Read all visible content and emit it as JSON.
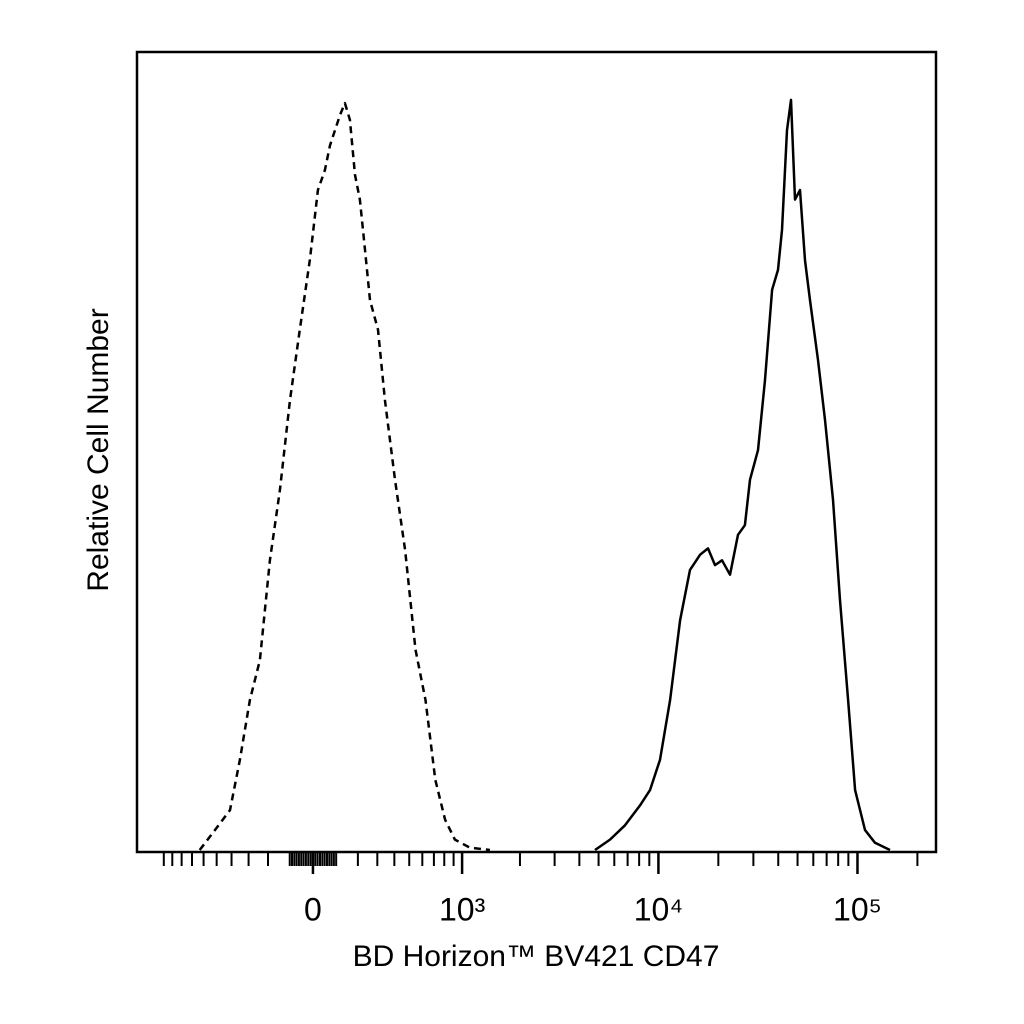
{
  "chart_data": {
    "type": "line",
    "xlabel": "BD Horizon™ BV421 CD47",
    "ylabel": "Relative Cell Number",
    "xscale": "biexponential",
    "xlim": [
      -1384,
      248000
    ],
    "ylim": [
      0,
      100
    ],
    "xticks": [
      0,
      {
        "value": 1000,
        "label": "10³"
      },
      {
        "value": 10000,
        "label": "10⁴"
      },
      {
        "value": 100000,
        "label": "10⁵"
      }
    ],
    "xminor_ticks": [
      -1000,
      -900,
      -800,
      -700,
      -600,
      -500,
      -400,
      -300,
      -200,
      -100,
      -90,
      -80,
      -70,
      -60,
      -50,
      -40,
      -30,
      -20,
      -10,
      10,
      20,
      30,
      40,
      50,
      60,
      70,
      80,
      90,
      100,
      200,
      300,
      400,
      500,
      600,
      700,
      800,
      900,
      2000,
      3000,
      4000,
      5000,
      6000,
      7000,
      8000,
      9000,
      20000,
      30000,
      40000,
      50000,
      60000,
      70000,
      80000,
      90000,
      200000
    ],
    "series": [
      {
        "color": "#000000",
        "linestyle": "dashed",
        "x": [
          -632,
          -512,
          -410,
          -349,
          -293,
          -240,
          -191,
          -144,
          -99,
          -56,
          -13,
          21,
          51,
          73,
          95,
          117,
          139,
          162,
          186,
          210,
          235,
          261,
          304,
          343,
          404,
          471,
          546,
          626,
          713,
          809,
          915,
          1098,
          1401
        ],
        "values": [
          0,
          2.5,
          5.0,
          11.3,
          18.8,
          23.8,
          36.3,
          45.1,
          56.4,
          65.2,
          74.0,
          82.7,
          85.2,
          88.3,
          90.2,
          92.1,
          93.6,
          91.5,
          84.6,
          81.5,
          75.2,
          68.9,
          65.2,
          56.4,
          46.4,
          37.6,
          25.1,
          18.8,
          8.8,
          3.8,
          1.3,
          0.3,
          0
        ]
      },
      {
        "color": "#000000",
        "linestyle": "solid",
        "x": [
          4796,
          5711,
          6790,
          8085,
          9071,
          10186,
          11441,
          12847,
          14418,
          16192,
          17749,
          19246,
          20866,
          22890,
          25098,
          27195,
          28851,
          31648,
          34334,
          37242,
          39891,
          41768,
          44270,
          46368,
          48576,
          51446,
          54501,
          57739,
          63370,
          68706,
          75366,
          81733,
          89682,
          97262,
          109112,
          122507,
          145728
        ],
        "values": [
          0,
          1.3,
          3.1,
          5.6,
          7.5,
          11.3,
          18.8,
          28.8,
          35.1,
          37.0,
          37.8,
          35.7,
          36.3,
          34.5,
          39.5,
          40.7,
          46.4,
          50.1,
          58.9,
          70.2,
          72.7,
          77.7,
          90.2,
          94.0,
          81.5,
          82.7,
          73.9,
          68.9,
          61.4,
          53.9,
          43.9,
          31.3,
          18.8,
          7.5,
          2.5,
          0.9,
          0
        ]
      }
    ]
  }
}
